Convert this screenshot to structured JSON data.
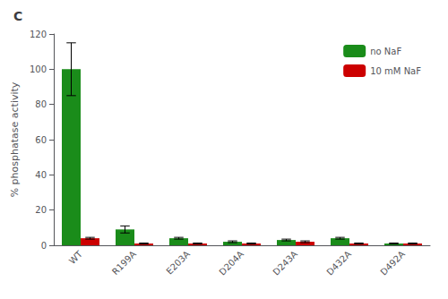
{
  "chart_data": {
    "type": "bar",
    "title": "C",
    "categories": [
      "WT",
      "R199A",
      "E203A",
      "D204A",
      "D243A",
      "D432A",
      "D492A"
    ],
    "series": [
      {
        "name": "no NaF",
        "color": "#1a8c1a",
        "values": [
          100,
          9,
          4,
          2,
          3,
          4,
          1
        ],
        "errors": [
          15,
          2,
          0.5,
          0.5,
          0.5,
          0.5,
          0.3
        ]
      },
      {
        "name": "10 mM NaF",
        "color": "#cc0000",
        "values": [
          4,
          1,
          1,
          1,
          2,
          1,
          1
        ],
        "errors": [
          0.5,
          0.3,
          0.3,
          0.3,
          0.5,
          0.3,
          0.3
        ]
      }
    ],
    "ylabel": "% phosphatase activity",
    "ylim": [
      0,
      120
    ],
    "yticks": [
      0,
      20,
      40,
      60,
      80,
      100,
      120
    ],
    "grid": false,
    "legend": "upper right"
  }
}
